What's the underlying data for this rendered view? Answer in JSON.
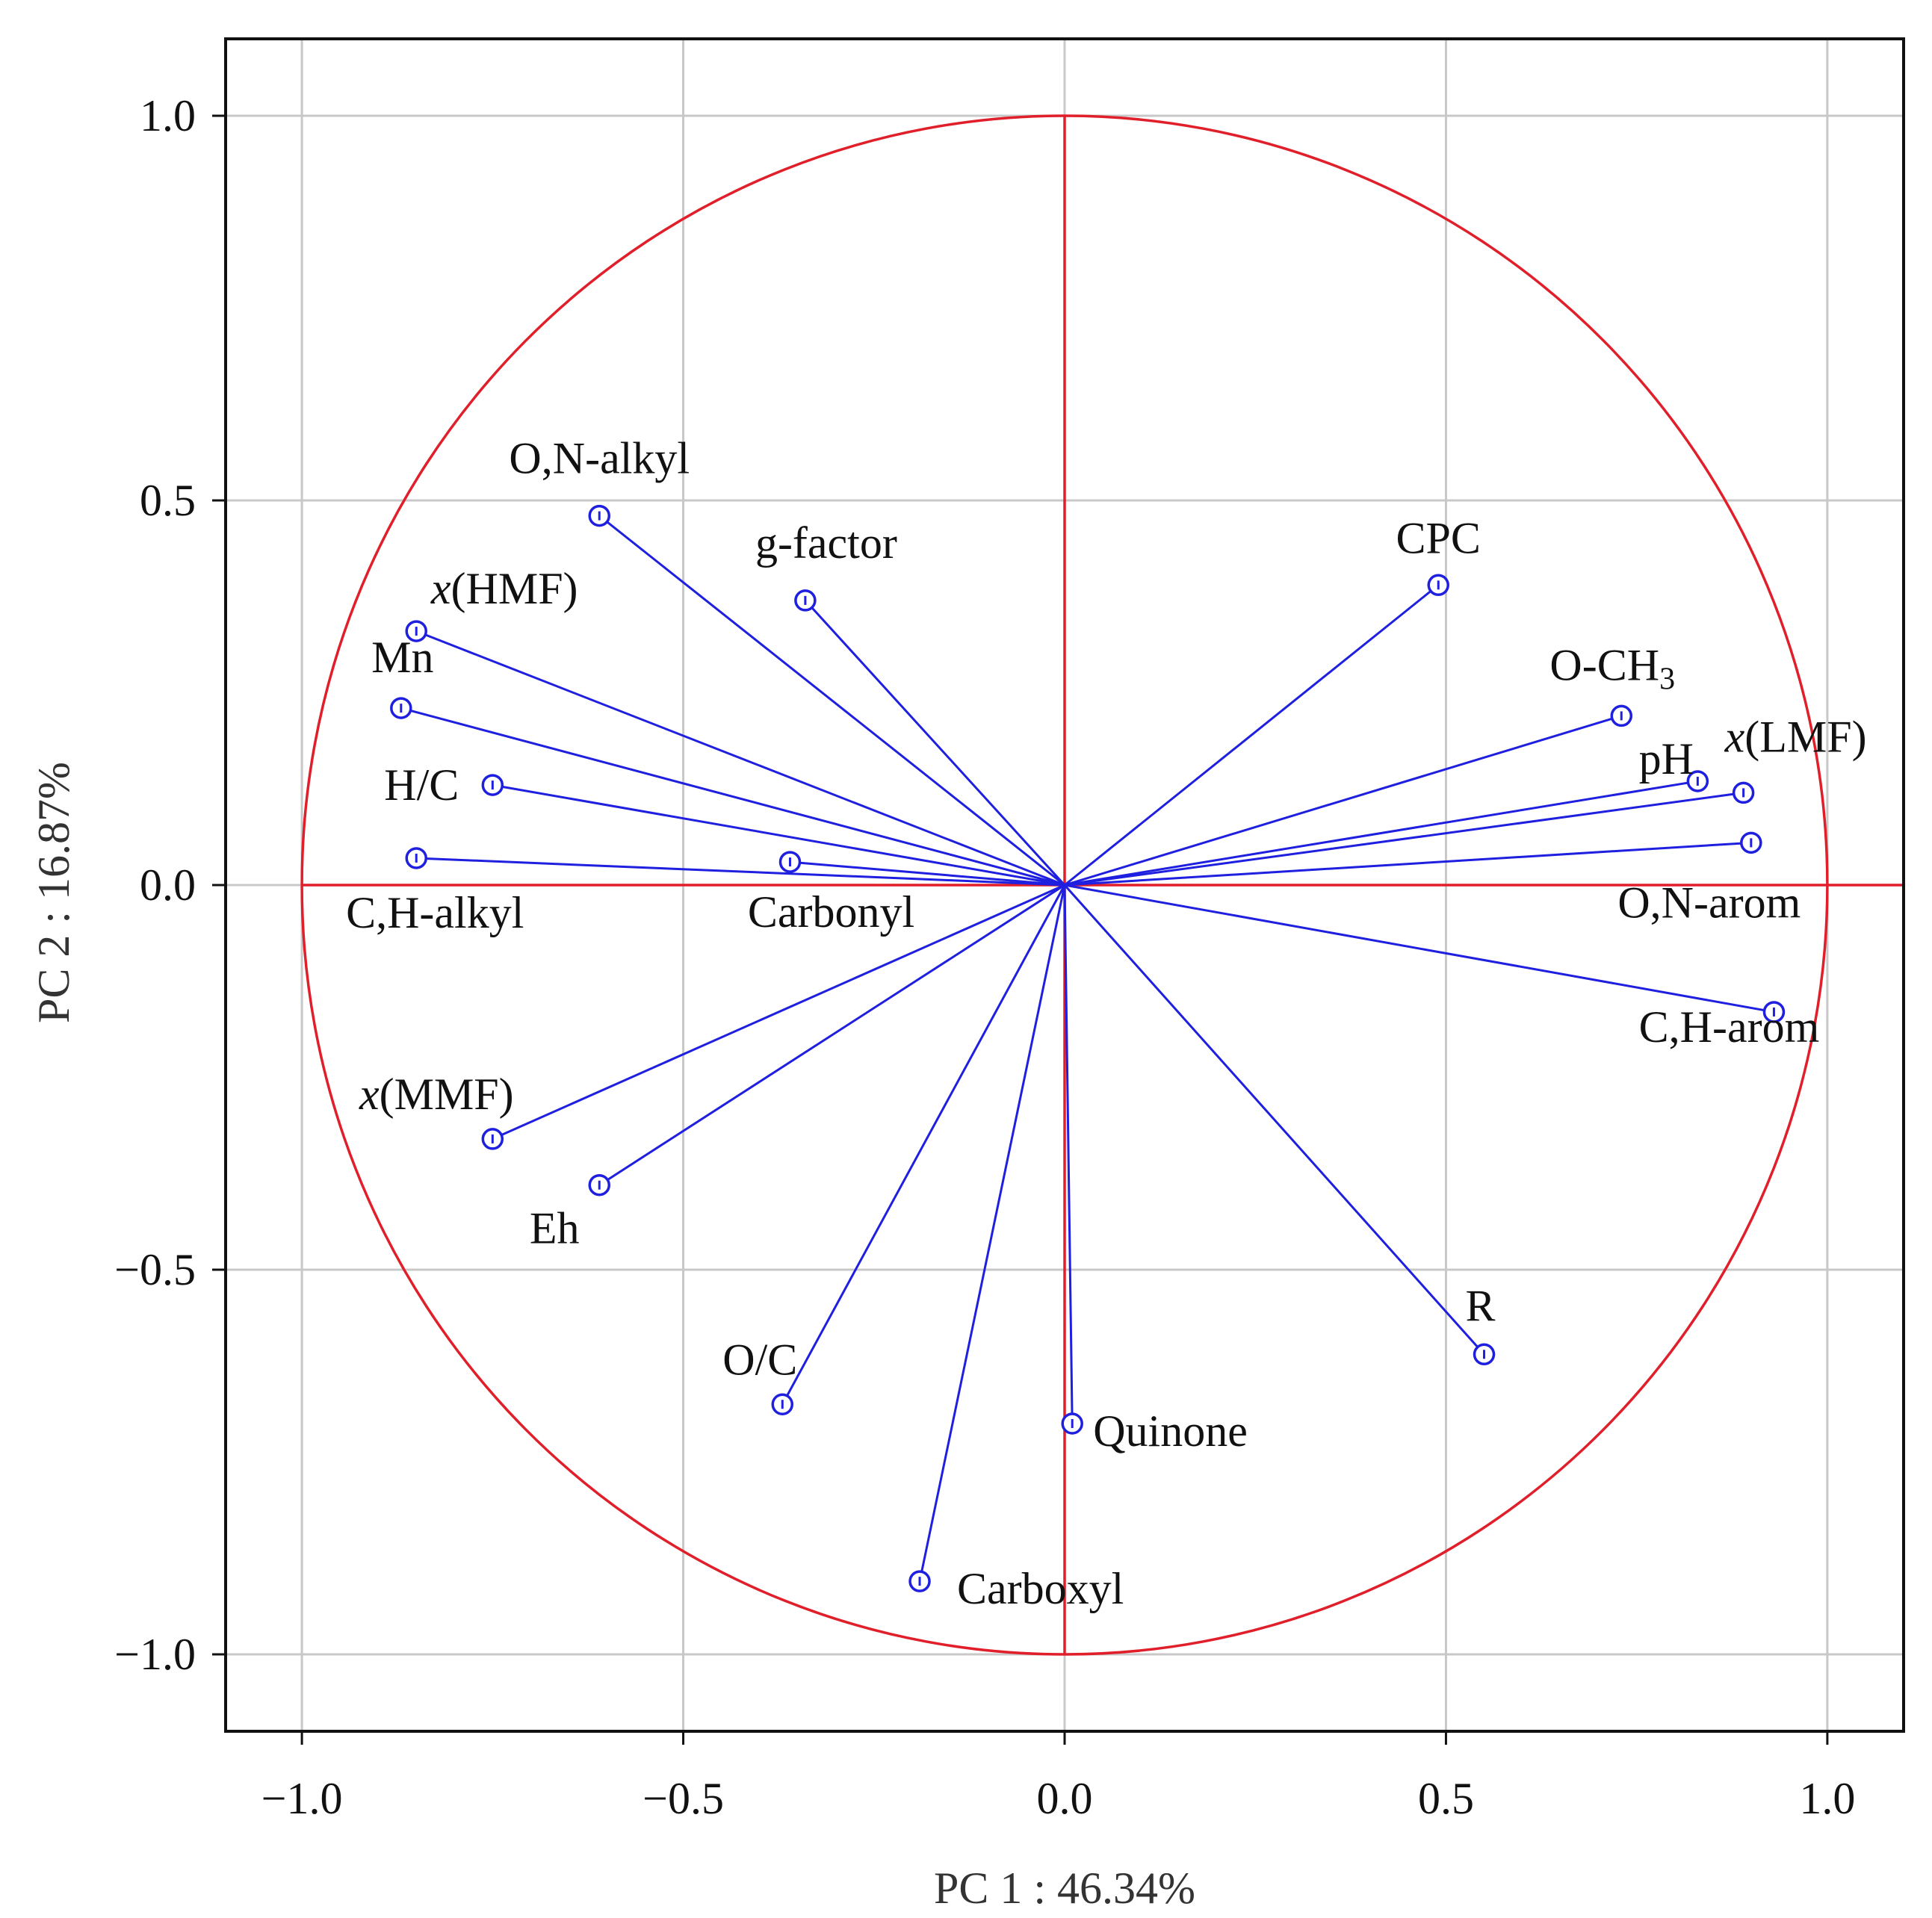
{
  "chart_data": {
    "type": "scatter",
    "subtype": "pca-loadings-correlation-circle",
    "title": "",
    "xlabel": "PC 1 : 46.34%",
    "ylabel": "PC 2 : 16.87%",
    "xlim": [
      -1.1,
      1.1
    ],
    "ylim": [
      -1.1,
      1.1
    ],
    "xticks": [
      -1.0,
      -0.5,
      0.0,
      0.5,
      1.0
    ],
    "yticks": [
      -1.0,
      -0.5,
      0.0,
      0.5,
      1.0
    ],
    "xtick_labels": [
      "−1.0",
      "−0.5",
      "0.0",
      "0.5",
      "1.0"
    ],
    "ytick_labels": [
      "−1.0",
      "−0.5",
      "0.0",
      "0.5",
      "1.0"
    ],
    "grid": true,
    "unit_circle": true,
    "colors": {
      "vectors": "#1f1fe0",
      "circle": "#e01f2a",
      "grid": "#c8c8c8",
      "frame": "#111111"
    },
    "points": [
      {
        "label": "O,N-alkyl",
        "x": -0.61,
        "y": 0.48
      },
      {
        "label": "g-factor",
        "x": -0.34,
        "y": 0.37
      },
      {
        "label": "x(HMF)",
        "x": -0.85,
        "y": 0.33
      },
      {
        "label": "Mn",
        "x": -0.87,
        "y": 0.23
      },
      {
        "label": "H/C",
        "x": -0.75,
        "y": 0.13
      },
      {
        "label": "C,H-alkyl",
        "x": -0.85,
        "y": 0.035
      },
      {
        "label": "Carbonyl",
        "x": -0.36,
        "y": 0.03
      },
      {
        "label": "CPC",
        "x": 0.49,
        "y": 0.39
      },
      {
        "label": "O-CH3",
        "x": 0.73,
        "y": 0.22
      },
      {
        "label": "pH",
        "x": 0.83,
        "y": 0.135
      },
      {
        "label": "x(LMF)",
        "x": 0.89,
        "y": 0.12
      },
      {
        "label": "O,N-arom",
        "x": 0.9,
        "y": 0.055
      },
      {
        "label": "C,H-arom",
        "x": 0.93,
        "y": -0.165
      },
      {
        "label": "x(MMF)",
        "x": -0.75,
        "y": -0.33
      },
      {
        "label": "Eh",
        "x": -0.61,
        "y": -0.39
      },
      {
        "label": "O/C",
        "x": -0.37,
        "y": -0.675
      },
      {
        "label": "Carboxyl",
        "x": -0.19,
        "y": -0.905
      },
      {
        "label": "Quinone",
        "x": 0.01,
        "y": -0.7
      },
      {
        "label": "R",
        "x": 0.55,
        "y": -0.61
      }
    ]
  }
}
